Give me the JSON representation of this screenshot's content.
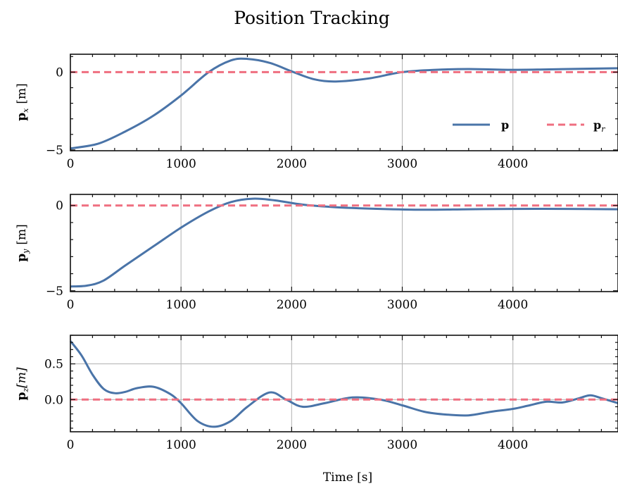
{
  "title": "Position Tracking",
  "xlabel": "Time [s]",
  "colors": {
    "p": "#4a74a8",
    "p_r": "#ef6f80",
    "grid": "#b9b9b9",
    "axis": "#111111"
  },
  "legend": {
    "placement": "lower-right (top panel)",
    "items": [
      {
        "label": "p",
        "sub": ""
      },
      {
        "label": "p",
        "sub": "r"
      }
    ]
  },
  "chart_data": [
    {
      "type": "line",
      "ylabel": {
        "main": "p",
        "sub": "x",
        "unit": "[m]"
      },
      "xlim": [
        0,
        4950
      ],
      "ylim": [
        -5.05,
        1.15
      ],
      "xticks": [
        0,
        1000,
        2000,
        3000,
        4000
      ],
      "xtick_labels": [
        "0",
        "1000",
        "2000",
        "3000",
        "4000"
      ],
      "yticks": [
        -5,
        0
      ],
      "ytick_labels": [
        "−5",
        "0"
      ],
      "grid": "x",
      "series": [
        {
          "name": "p",
          "style": "solid",
          "x": [
            0,
            250,
            500,
            750,
            1000,
            1250,
            1450,
            1600,
            1800,
            2000,
            2200,
            2400,
            2700,
            3000,
            3300,
            3600,
            4000,
            4500,
            4950
          ],
          "y": [
            -4.9,
            -4.6,
            -3.8,
            -2.8,
            -1.5,
            0.0,
            0.75,
            0.85,
            0.6,
            0.05,
            -0.45,
            -0.6,
            -0.4,
            0.0,
            0.15,
            0.2,
            0.15,
            0.2,
            0.25
          ]
        },
        {
          "name": "p_r",
          "style": "dashed",
          "x": [
            0,
            4950
          ],
          "y": [
            0,
            0
          ]
        }
      ]
    },
    {
      "type": "line",
      "ylabel": {
        "main": "p",
        "sub": "y",
        "unit": "[m]"
      },
      "xlim": [
        0,
        4950
      ],
      "ylim": [
        -5.05,
        0.65
      ],
      "xticks": [
        0,
        1000,
        2000,
        3000,
        4000
      ],
      "xtick_labels": [
        "0",
        "1000",
        "2000",
        "3000",
        "4000"
      ],
      "yticks": [
        -5,
        0
      ],
      "ytick_labels": [
        "−5",
        "0"
      ],
      "grid": "x",
      "series": [
        {
          "name": "p",
          "style": "solid",
          "x": [
            0,
            150,
            300,
            500,
            750,
            1000,
            1250,
            1450,
            1650,
            1850,
            2100,
            2400,
            2800,
            3200,
            3600,
            4000,
            4500,
            4950
          ],
          "y": [
            -4.75,
            -4.7,
            -4.4,
            -3.5,
            -2.4,
            -1.3,
            -0.35,
            0.2,
            0.4,
            0.3,
            0.05,
            -0.1,
            -0.2,
            -0.25,
            -0.22,
            -0.2,
            -0.2,
            -0.22
          ]
        },
        {
          "name": "p_r",
          "style": "dashed",
          "x": [
            0,
            4950
          ],
          "y": [
            0,
            0
          ]
        }
      ]
    },
    {
      "type": "line",
      "ylabel": {
        "main": "p",
        "sub": "z",
        "unit": "[m]"
      },
      "xlim": [
        0,
        4950
      ],
      "ylim": [
        -0.45,
        0.9
      ],
      "xticks": [
        0,
        1000,
        2000,
        3000,
        4000
      ],
      "xtick_labels": [
        "0",
        "1000",
        "2000",
        "3000",
        "4000"
      ],
      "yticks": [
        0.0,
        0.5
      ],
      "ytick_labels": [
        "0.0",
        "0.5"
      ],
      "grid": "both",
      "series": [
        {
          "name": "p",
          "style": "solid",
          "x": [
            0,
            100,
            200,
            300,
            400,
            500,
            600,
            750,
            900,
            1000,
            1150,
            1300,
            1450,
            1600,
            1800,
            1950,
            2100,
            2300,
            2550,
            2800,
            3000,
            3200,
            3400,
            3600,
            3800,
            4000,
            4150,
            4300,
            4450,
            4600,
            4700,
            4800,
            4950
          ],
          "y": [
            0.82,
            0.62,
            0.35,
            0.15,
            0.09,
            0.11,
            0.16,
            0.18,
            0.08,
            -0.05,
            -0.3,
            -0.38,
            -0.3,
            -0.1,
            0.1,
            0.0,
            -0.1,
            -0.05,
            0.03,
            0.0,
            -0.08,
            -0.17,
            -0.21,
            -0.22,
            -0.17,
            -0.13,
            -0.08,
            -0.03,
            -0.04,
            0.02,
            0.06,
            0.02,
            -0.05
          ]
        },
        {
          "name": "p_r",
          "style": "dashed",
          "x": [
            0,
            4950
          ],
          "y": [
            0,
            0
          ]
        }
      ]
    }
  ]
}
